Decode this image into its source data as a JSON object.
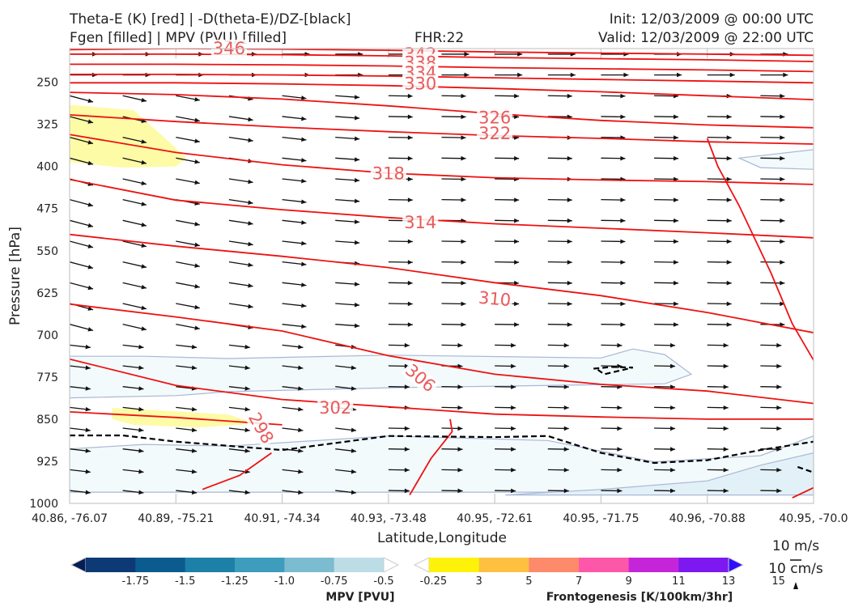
{
  "titles": {
    "line1_left": "Theta-E (K) [red] | -D(theta-E)/DZ-[black]",
    "line2_left": "Fgen [filled] | MPV (PVU) [filled]",
    "fhr": "FHR:22",
    "init": "Init: 12/03/2009 @ 00:00 UTC",
    "valid": "Valid: 12/03/2009 @ 22:00 UTC"
  },
  "chart_data": {
    "type": "cross-section",
    "xlabel": "Latitude,Longitude",
    "ylabel": "Pressure [hPa]",
    "x_ticks": [
      "40.86, -76.07",
      "40.89, -75.21",
      "40.91, -74.34",
      "40.93, -73.48",
      "40.95, -72.61",
      "40.95, -71.75",
      "40.96, -70.88",
      "40.95, -70.0"
    ],
    "y_ticks": [
      250,
      325,
      400,
      475,
      550,
      625,
      700,
      775,
      850,
      925,
      1000
    ],
    "ylim": [
      1000,
      190
    ],
    "theta_e_contour_labels": [
      {
        "value": "346",
        "x": 1.5,
        "p": 190
      },
      {
        "value": "342",
        "x": 3.3,
        "p": 200
      },
      {
        "value": "338",
        "x": 3.3,
        "p": 215
      },
      {
        "value": "334",
        "x": 3.3,
        "p": 233
      },
      {
        "value": "330",
        "x": 3.3,
        "p": 253
      },
      {
        "value": "326",
        "x": 4.0,
        "p": 313
      },
      {
        "value": "322",
        "x": 4.0,
        "p": 341
      },
      {
        "value": "318",
        "x": 3.0,
        "p": 413
      },
      {
        "value": "314",
        "x": 3.3,
        "p": 500
      },
      {
        "value": "310",
        "x": 4.0,
        "p": 636
      },
      {
        "value": "306",
        "x": 3.3,
        "p": 777
      },
      {
        "value": "302",
        "x": 2.5,
        "p": 830
      },
      {
        "value": "298",
        "x": 1.8,
        "p": 866
      }
    ],
    "theta_e_lines": [
      {
        "pts": [
          [
            0,
            192
          ],
          [
            1,
            190
          ],
          [
            2,
            191
          ],
          [
            3,
            193
          ],
          [
            4,
            196
          ],
          [
            5,
            198
          ],
          [
            6,
            200
          ],
          [
            7,
            202
          ]
        ]
      },
      {
        "pts": [
          [
            0,
            200
          ],
          [
            1,
            200
          ],
          [
            2,
            201
          ],
          [
            3,
            203
          ],
          [
            4,
            206
          ],
          [
            5,
            208
          ],
          [
            6,
            210
          ],
          [
            7,
            213
          ]
        ]
      },
      {
        "pts": [
          [
            0,
            218
          ],
          [
            1,
            218
          ],
          [
            2,
            219
          ],
          [
            3,
            221
          ],
          [
            4,
            224
          ],
          [
            5,
            226
          ],
          [
            6,
            228
          ],
          [
            7,
            231
          ]
        ]
      },
      {
        "pts": [
          [
            0,
            236
          ],
          [
            1,
            236
          ],
          [
            2,
            237
          ],
          [
            3,
            239
          ],
          [
            4,
            242
          ],
          [
            5,
            245
          ],
          [
            6,
            248
          ],
          [
            7,
            251
          ]
        ]
      },
      {
        "pts": [
          [
            0,
            251
          ],
          [
            1,
            251
          ],
          [
            2,
            253
          ],
          [
            3,
            256
          ],
          [
            4,
            261
          ],
          [
            5,
            267
          ],
          [
            6,
            274
          ],
          [
            7,
            281
          ]
        ]
      },
      {
        "pts": [
          [
            0,
            268
          ],
          [
            1,
            272
          ],
          [
            2,
            280
          ],
          [
            3,
            292
          ],
          [
            4,
            306
          ],
          [
            5,
            318
          ],
          [
            6,
            326
          ],
          [
            7,
            331
          ]
        ]
      },
      {
        "pts": [
          [
            0,
            308
          ],
          [
            1,
            320
          ],
          [
            2,
            330
          ],
          [
            3,
            338
          ],
          [
            4,
            345
          ],
          [
            5,
            350
          ],
          [
            6,
            356
          ],
          [
            7,
            360
          ]
        ]
      },
      {
        "pts": [
          [
            0,
            343
          ],
          [
            1,
            375
          ],
          [
            2,
            397
          ],
          [
            3,
            412
          ],
          [
            4,
            420
          ],
          [
            5,
            424
          ],
          [
            6,
            427
          ],
          [
            7,
            432
          ]
        ]
      },
      {
        "pts": [
          [
            0,
            423
          ],
          [
            1,
            460
          ],
          [
            2,
            477
          ],
          [
            3,
            491
          ],
          [
            4,
            502
          ],
          [
            5,
            510
          ],
          [
            6,
            518
          ],
          [
            7,
            527
          ]
        ]
      },
      {
        "pts": [
          [
            0,
            521
          ],
          [
            1,
            542
          ],
          [
            2,
            560
          ],
          [
            3,
            580
          ],
          [
            4,
            607
          ],
          [
            5,
            630
          ],
          [
            6,
            660
          ],
          [
            7,
            696
          ]
        ]
      },
      {
        "pts": [
          [
            0,
            645
          ],
          [
            1,
            668
          ],
          [
            2,
            693
          ],
          [
            3,
            737
          ],
          [
            4,
            770
          ],
          [
            5,
            788
          ],
          [
            6,
            800
          ],
          [
            7,
            822
          ]
        ]
      },
      {
        "pts": [
          [
            0,
            743
          ],
          [
            1,
            790
          ],
          [
            2,
            815
          ],
          [
            3,
            828
          ],
          [
            4,
            841
          ],
          [
            5,
            846
          ],
          [
            6,
            850
          ],
          [
            7,
            850
          ]
        ]
      },
      {
        "pts": [
          [
            0,
            837
          ],
          [
            1,
            847
          ],
          [
            2,
            860
          ]
        ]
      },
      {
        "pts": [
          [
            1.25,
            975
          ],
          [
            1.6,
            950
          ],
          [
            1.9,
            910
          ]
        ]
      },
      {
        "pts": [
          [
            3.2,
            985
          ],
          [
            3.4,
            920
          ],
          [
            3.6,
            872
          ],
          [
            3.58,
            850
          ]
        ]
      },
      {
        "pts": [
          [
            6.0,
            350
          ],
          [
            6.1,
            400
          ],
          [
            6.3,
            470
          ],
          [
            6.6,
            590
          ],
          [
            6.8,
            680
          ],
          [
            7.0,
            745
          ]
        ]
      },
      {
        "pts": [
          [
            6.8,
            990
          ],
          [
            7.0,
            972
          ]
        ]
      }
    ],
    "fill_regions": [
      {
        "pts": [
          [
            0,
            290
          ],
          [
            0.6,
            300
          ],
          [
            0.9,
            350
          ],
          [
            1.1,
            385
          ],
          [
            1.0,
            400
          ],
          [
            0.5,
            402
          ],
          [
            0,
            392
          ]
        ],
        "color": "#fdfba6"
      },
      {
        "pts": [
          [
            0.4,
            830
          ],
          [
            1.0,
            836
          ],
          [
            1.5,
            842
          ],
          [
            1.75,
            858
          ],
          [
            1.2,
            865
          ],
          [
            0.6,
            860
          ],
          [
            0.4,
            850
          ]
        ],
        "color": "#fdfba6"
      },
      {
        "pts": [
          [
            0,
            738
          ],
          [
            0.7,
            738
          ],
          [
            1.5,
            742
          ],
          [
            3.0,
            736
          ],
          [
            5.0,
            741
          ],
          [
            5.3,
            725
          ],
          [
            5.6,
            735
          ],
          [
            5.85,
            770
          ],
          [
            5.6,
            787
          ],
          [
            3.0,
            794
          ],
          [
            1.5,
            801
          ],
          [
            1.0,
            808
          ],
          [
            0,
            812
          ]
        ],
        "color": "#f3fafc"
      },
      {
        "pts": [
          [
            6.3,
            385
          ],
          [
            7.0,
            370
          ],
          [
            7.0,
            405
          ],
          [
            6.5,
            402
          ]
        ],
        "color": "#f3fafc"
      },
      {
        "pts": [
          [
            0,
            903
          ],
          [
            0.7,
            895
          ],
          [
            1.5,
            898
          ],
          [
            3.0,
            880
          ],
          [
            4.5,
            888
          ],
          [
            5.5,
            926
          ],
          [
            6.5,
            915
          ],
          [
            7.0,
            880
          ],
          [
            7.0,
            980
          ],
          [
            0,
            980
          ]
        ],
        "color": "#f3fafc"
      },
      {
        "pts": [
          [
            4.1,
            985
          ],
          [
            5.0,
            975
          ],
          [
            6.0,
            960
          ],
          [
            6.5,
            932
          ],
          [
            7.0,
            910
          ],
          [
            7.0,
            985
          ]
        ],
        "color": "#e2f1f7"
      }
    ],
    "dtheta_dashed": [
      {
        "pts": [
          [
            0,
            879
          ],
          [
            0.5,
            879
          ],
          [
            1.0,
            890
          ],
          [
            2.0,
            905
          ],
          [
            3.0,
            880
          ],
          [
            4.0,
            882
          ],
          [
            4.5,
            880
          ],
          [
            5.0,
            910
          ],
          [
            5.5,
            928
          ],
          [
            6.0,
            923
          ],
          [
            6.5,
            905
          ],
          [
            7.0,
            890
          ]
        ]
      },
      {
        "pts": [
          [
            4.93,
            760
          ],
          [
            5.1,
            757
          ],
          [
            5.3,
            758
          ],
          [
            5.03,
            770
          ],
          [
            4.97,
            762
          ]
        ]
      },
      {
        "pts": [
          [
            6.85,
            935
          ],
          [
            7.0,
            945
          ]
        ]
      }
    ],
    "mpv_colorbar": {
      "label": "MPV [PVU]",
      "ticks": [
        "-1.75",
        "-1.5",
        "-1.25",
        "-1.0",
        "-0.75",
        "-0.5",
        "-0.25"
      ],
      "colors": [
        "#081d58",
        "#0d3a75",
        "#0c5b8f",
        "#1d80a6",
        "#3e9dbc",
        "#7cbcd0",
        "#bcdde5",
        "#ffffff"
      ]
    },
    "fgen_colorbar": {
      "label": "Frontogenesis [K/100km/3hr]",
      "ticks": [
        "3",
        "5",
        "7",
        "9",
        "11",
        "13",
        "15"
      ],
      "colors": [
        "#ffffff",
        "#fff20a",
        "#fdc03f",
        "#fd8a6a",
        "#fc57a8",
        "#c425d8",
        "#7d18f0",
        "#2f0dfa"
      ]
    },
    "vector_reference": {
      "horizontal": "10 m/s",
      "vertical": "10 cm/s"
    }
  }
}
